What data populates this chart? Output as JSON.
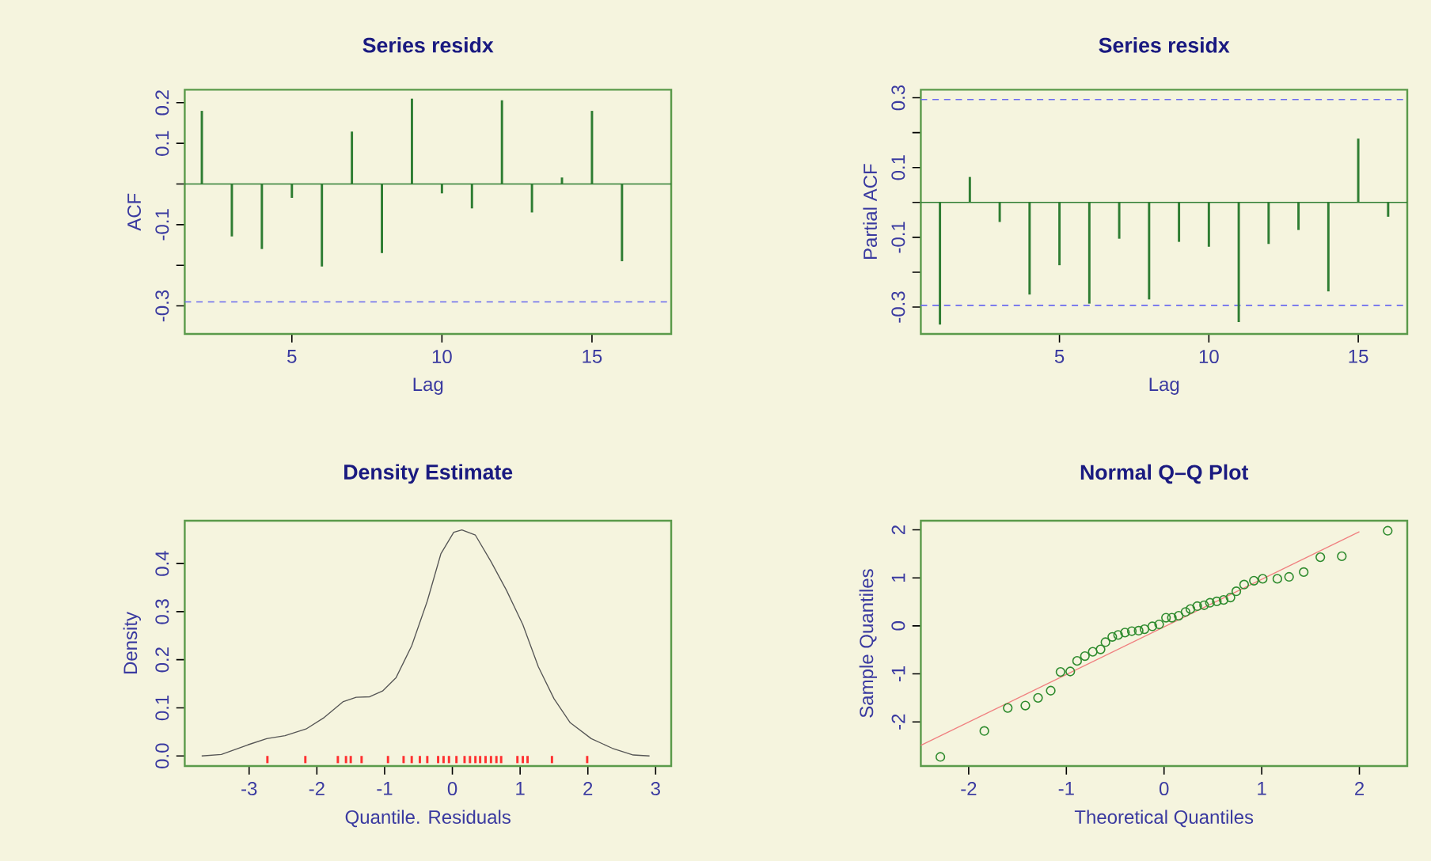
{
  "chart_data": [
    {
      "type": "bar",
      "title": "Series  residx",
      "xlabel": "Lag",
      "ylabel": "ACF",
      "x": [
        2,
        3,
        4,
        5,
        6,
        7,
        8,
        9,
        10,
        11,
        12,
        13,
        14,
        15,
        16
      ],
      "values": [
        0.18,
        -0.129,
        -0.16,
        -0.034,
        -0.203,
        0.129,
        -0.17,
        0.21,
        -0.023,
        -0.06,
        0.206,
        -0.07,
        0.016,
        0.18,
        -0.19
      ],
      "color": "#2e7d32",
      "xlim": [
        1.43,
        17.64
      ],
      "ylim": [
        -0.369,
        0.232
      ],
      "xticks": [
        5,
        10,
        15
      ],
      "yticks": [
        -0.3,
        {
          "value": -0.2,
          "label": null
        },
        -0.1,
        {
          "value": 0,
          "label": null
        },
        0.1,
        0.2
      ],
      "ref_lines": [
        {
          "axis": "y",
          "value": 0,
          "color": "#2e7d32",
          "line_style": "solid"
        },
        {
          "axis": "y",
          "value": -0.29,
          "color": "#6a6af0",
          "line_style": "dashed"
        }
      ]
    },
    {
      "type": "bar",
      "title": "Series  residx",
      "xlabel": "Lag",
      "ylabel": "Partial ACF",
      "x": [
        1,
        2,
        3,
        4,
        5,
        6,
        7,
        8,
        9,
        10,
        11,
        12,
        13,
        14,
        15,
        16
      ],
      "values": [
        -0.35,
        0.073,
        -0.056,
        -0.264,
        -0.18,
        -0.29,
        -0.104,
        -0.278,
        -0.113,
        -0.127,
        -0.343,
        -0.119,
        -0.079,
        -0.255,
        0.183,
        -0.041
      ],
      "color": "#2e7d32",
      "xlim": [
        0.36,
        16.64
      ],
      "ylim": [
        -0.377,
        0.323
      ],
      "xticks": [
        5,
        10,
        15
      ],
      "yticks": [
        -0.3,
        {
          "value": -0.2,
          "label": null
        },
        -0.1,
        {
          "value": 0,
          "label": null
        },
        0.1,
        {
          "value": 0.2,
          "label": null
        },
        0.3
      ],
      "ref_lines": [
        {
          "axis": "y",
          "value": 0,
          "color": "#2e7d32",
          "line_style": "solid"
        },
        {
          "axis": "y",
          "value": 0.295,
          "color": "#6a6af0",
          "line_style": "dashed"
        },
        {
          "axis": "y",
          "value": -0.295,
          "color": "#6a6af0",
          "line_style": "dashed"
        }
      ]
    },
    {
      "type": "line",
      "title": "Density Estimate",
      "xlabel": "Quantile. Residuals",
      "ylabel": "Density",
      "xlim": [
        -3.95,
        3.23
      ],
      "ylim": [
        -0.021,
        0.489
      ],
      "xticks": [
        -3,
        -2,
        -1,
        0,
        1,
        2,
        3
      ],
      "yticks": [
        {
          "value": 0,
          "label": "0.0"
        },
        0.1,
        0.2,
        0.3,
        0.4
      ],
      "series": [
        {
          "type": "line",
          "color": "#555555",
          "x": [
            -3.7,
            -3.41,
            -3.02,
            -2.74,
            -2.47,
            -2.16,
            -1.89,
            -1.61,
            -1.42,
            -1.22,
            -1.03,
            -0.83,
            -0.6,
            -0.37,
            -0.17,
            0.02,
            0.14,
            0.34,
            0.57,
            0.8,
            1.04,
            1.27,
            1.5,
            1.74,
            2.05,
            2.36,
            2.67,
            2.91
          ],
          "values": [
            0.0,
            0.003,
            0.023,
            0.036,
            0.042,
            0.056,
            0.08,
            0.113,
            0.122,
            0.123,
            0.135,
            0.163,
            0.229,
            0.322,
            0.42,
            0.465,
            0.47,
            0.459,
            0.404,
            0.344,
            0.273,
            0.185,
            0.119,
            0.069,
            0.036,
            0.016,
            0.002,
            0.0
          ]
        },
        {
          "type": "bar",
          "color": "#ff3030",
          "x": [
            -2.73,
            -2.17,
            -1.69,
            -1.57,
            -1.5,
            -1.34,
            -0.95,
            -0.72,
            -0.6,
            -0.48,
            -0.37,
            -0.21,
            -0.13,
            -0.05,
            0.06,
            0.18,
            0.26,
            0.34,
            0.41,
            0.49,
            0.57,
            0.65,
            0.72,
            0.96,
            1.04,
            1.11,
            1.47,
            1.99
          ],
          "values": [
            -0.015,
            -0.015,
            -0.015,
            -0.015,
            -0.015,
            -0.015,
            -0.015,
            -0.015,
            -0.015,
            -0.015,
            -0.015,
            -0.015,
            -0.015,
            -0.015,
            -0.015,
            -0.015,
            -0.015,
            -0.015,
            -0.015,
            -0.015,
            -0.015,
            -0.015,
            -0.015,
            -0.015,
            -0.015,
            -0.015,
            -0.015,
            -0.015
          ]
        }
      ]
    },
    {
      "type": "scatter",
      "title": "Normal Q–Q Plot",
      "xlabel": "Theoretical Quantiles",
      "ylabel": "Sample Quantiles",
      "xlim": [
        -2.49,
        2.49
      ],
      "ylim": [
        -2.92,
        2.19
      ],
      "xticks": [
        -2,
        -1,
        0,
        1,
        2
      ],
      "yticks": [
        -2,
        -1,
        0,
        1,
        2
      ],
      "series": [
        {
          "type": "scatter",
          "marker": "circle",
          "color": "#2e8b2e",
          "x": [
            -2.29,
            -1.84,
            -1.6,
            -1.42,
            -1.29,
            -1.16,
            -1.06,
            -0.96,
            -0.89,
            -0.81,
            -0.73,
            -0.65,
            -0.6,
            -0.53,
            -0.47,
            -0.4,
            -0.33,
            -0.26,
            -0.2,
            -0.12,
            -0.05,
            0.02,
            0.08,
            0.15,
            0.22,
            0.27,
            0.34,
            0.41,
            0.47,
            0.54,
            0.61,
            0.68,
            0.74,
            0.82,
            0.92,
            1.01,
            1.16,
            1.28,
            1.43,
            1.6,
            1.82,
            2.29
          ],
          "values": [
            -2.73,
            -2.19,
            -1.71,
            -1.66,
            -1.5,
            -1.35,
            -0.96,
            -0.95,
            -0.73,
            -0.63,
            -0.54,
            -0.49,
            -0.34,
            -0.23,
            -0.19,
            -0.14,
            -0.11,
            -0.1,
            -0.07,
            -0.01,
            0.03,
            0.17,
            0.17,
            0.21,
            0.29,
            0.35,
            0.41,
            0.43,
            0.48,
            0.51,
            0.54,
            0.59,
            0.72,
            0.86,
            0.94,
            0.98,
            0.98,
            1.02,
            1.12,
            1.43,
            1.45,
            1.98
          ]
        },
        {
          "type": "line",
          "color": "#f08080",
          "x": [
            -2.49,
            2.0
          ],
          "values": [
            -2.49,
            1.96
          ]
        }
      ]
    }
  ]
}
